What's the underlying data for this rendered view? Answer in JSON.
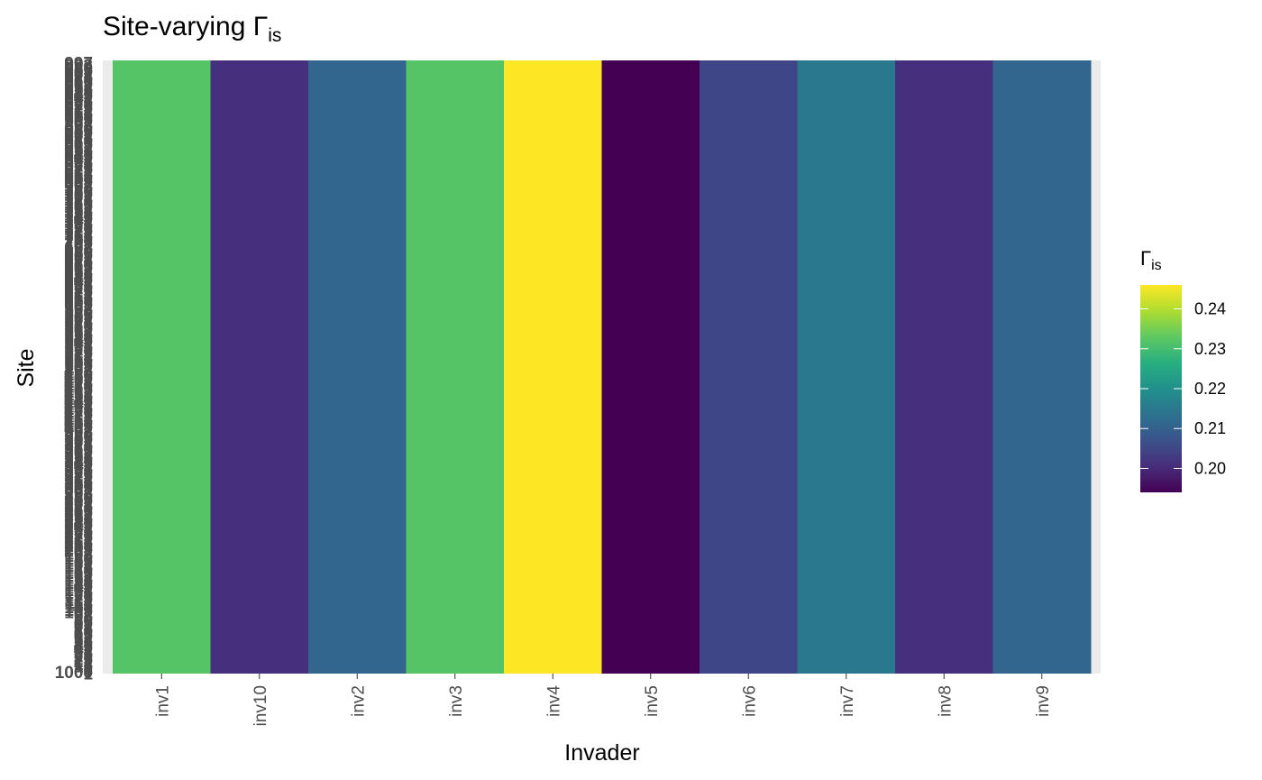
{
  "chart_data": {
    "type": "heatmap",
    "title": "Site-varying Γ",
    "title_subscript": "is",
    "xlabel": "Invader",
    "ylabel": "Site",
    "x": [
      "inv1",
      "inv10",
      "inv2",
      "inv3",
      "inv4",
      "inv5",
      "inv6",
      "inv7",
      "inv8",
      "inv9"
    ],
    "values": [
      0.232,
      0.201,
      0.211,
      0.232,
      0.246,
      0.194,
      0.205,
      0.215,
      0.201,
      0.211
    ],
    "y_range": [
      1,
      1000
    ],
    "y_tick_label_bottom": "1000",
    "legend": {
      "title": "Γ",
      "title_subscript": "is",
      "ticks": [
        0.2,
        0.21,
        0.22,
        0.23,
        0.24
      ],
      "tick_labels": [
        "0.20",
        "0.21",
        "0.22",
        "0.23",
        "0.24"
      ],
      "range": [
        0.194,
        0.246
      ],
      "colormap": "viridis",
      "placement": "right"
    },
    "panel_background": "#ebebeb",
    "grid": false
  }
}
